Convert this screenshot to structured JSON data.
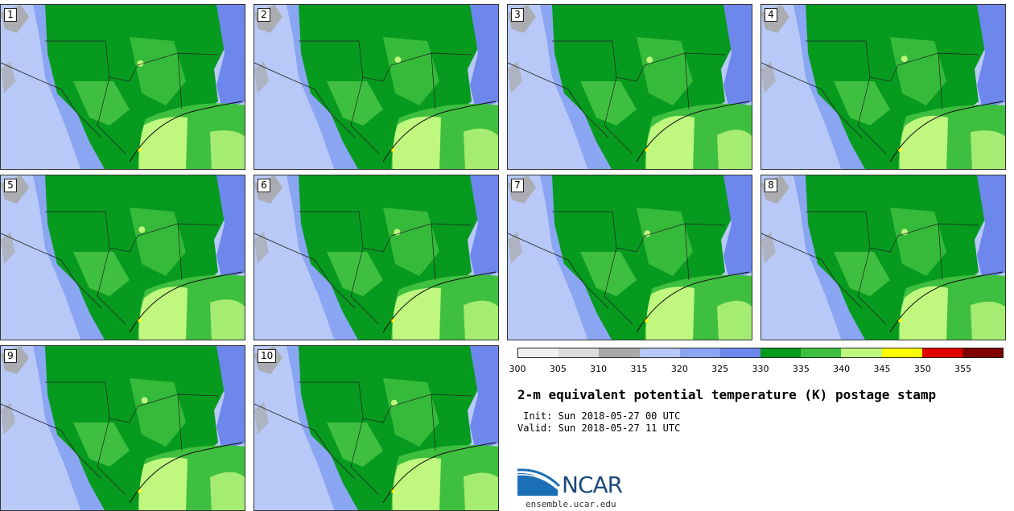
{
  "panels": [
    {
      "label": "1"
    },
    {
      "label": "2"
    },
    {
      "label": "3"
    },
    {
      "label": "4"
    },
    {
      "label": "5"
    },
    {
      "label": "6"
    },
    {
      "label": "7"
    },
    {
      "label": "8"
    },
    {
      "label": "9"
    },
    {
      "label": "10"
    }
  ],
  "colorbar": {
    "colors": [
      "#f1f1f1",
      "#dcdcdc",
      "#a9a9a9",
      "#b8c9f7",
      "#8aa6f2",
      "#6d87ec",
      "#069a1f",
      "#3fbf3f",
      "#bff77f",
      "#ffff00",
      "#e00000",
      "#800000"
    ],
    "ticks": [
      "300",
      "305",
      "310",
      "315",
      "320",
      "325",
      "330",
      "335",
      "340",
      "345",
      "350",
      "355"
    ]
  },
  "title": "2-m equivalent potential temperature (K) postage stamp",
  "init": " Init: Sun 2018-05-27 00 UTC",
  "valid": "Valid: Sun 2018-05-27 11 UTC",
  "logo": {
    "text": "NCAR",
    "site": "ensemble.ucar.edu"
  },
  "map_colors": {
    "water": "#6d87ec",
    "cool": "#b8c9f7",
    "mid": "#8aa6f2",
    "gray": "#a9a9a9",
    "dark_green": "#069a1f",
    "light_green": "#3fbf3f",
    "yellow_green": "#bff77f",
    "yellow": "#ffff00"
  }
}
